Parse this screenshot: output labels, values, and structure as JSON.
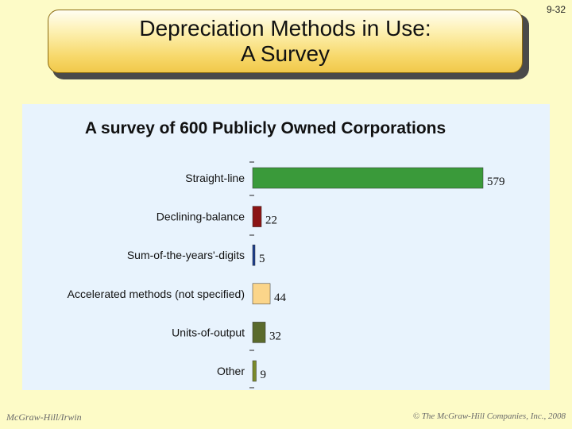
{
  "slide": {
    "number": "9-32",
    "title_line1": "Depreciation Methods in Use:",
    "title_line2": "A Survey"
  },
  "footer": {
    "left": "McGraw-Hill/Irwin",
    "right": "© The McGraw-Hill Companies, Inc., 2008"
  },
  "chart_data": {
    "type": "bar",
    "orientation": "horizontal",
    "title": "A survey of 600 Publicly Owned Corporations",
    "categories": [
      "Straight-line",
      "Declining-balance",
      "Sum-of-the-years'-digits",
      "Accelerated methods (not specified)",
      "Units-of-output",
      "Other"
    ],
    "values": [
      579,
      22,
      5,
      44,
      32,
      9
    ],
    "colors": [
      "#3a9a3a",
      "#8b1414",
      "#1b3d8f",
      "#fbd58a",
      "#5a6a2c",
      "#7a8a2a"
    ],
    "value_labels": [
      "579",
      "22",
      "5",
      "44",
      "32",
      "9"
    ]
  }
}
